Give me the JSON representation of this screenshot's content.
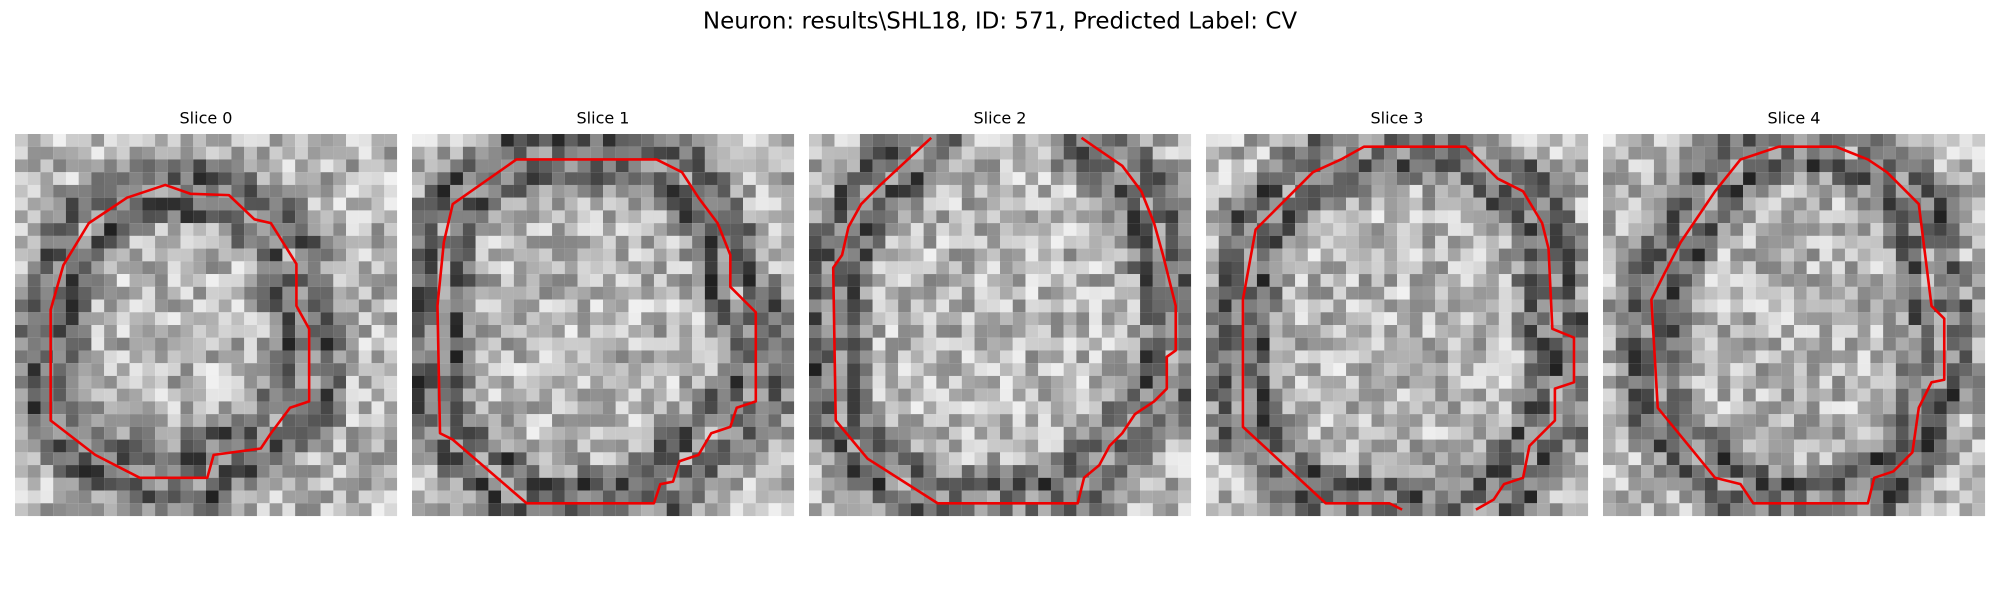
{
  "title": "Neuron: results\\SHL18, ID: 571, Predicted Label: CV",
  "panels": [
    {
      "title": "Slice 0"
    },
    {
      "title": "Slice 1"
    },
    {
      "title": "Slice 2"
    },
    {
      "title": "Slice 3"
    },
    {
      "title": "Slice 4"
    }
  ]
}
